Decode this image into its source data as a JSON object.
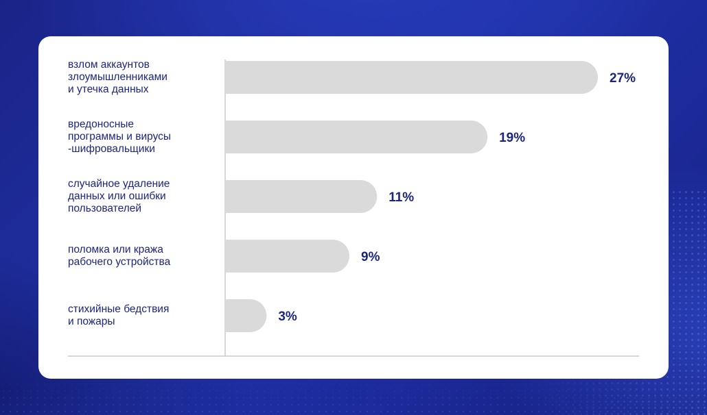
{
  "chart_data": {
    "type": "bar",
    "orientation": "horizontal",
    "categories": [
      "взлом аккаунтов злоумышленниками и утечка данных",
      "вредоносные программы и вирусы -шифровальщики",
      "случайное удаление данных или ошибки пользователей",
      "поломка или кража рабочего устройства",
      "стихийные бедствия и пожары"
    ],
    "category_lines": [
      [
        "взлом аккаунтов",
        "злоумышленниками",
        "и утечка данных"
      ],
      [
        "вредоносные",
        "программы и вирусы",
        "-шифровальщики"
      ],
      [
        "случайное удаление",
        "данных или ошибки",
        "пользователей"
      ],
      [
        "поломка или кража",
        "рабочего устройства"
      ],
      [
        "стихийные бедствия",
        "и пожары"
      ]
    ],
    "values": [
      27,
      19,
      11,
      9,
      3
    ],
    "data_labels": [
      "27%",
      "19%",
      "11%",
      "9%",
      "3%"
    ],
    "unit": "%",
    "title": "",
    "xlabel": "",
    "ylabel": "",
    "xlim": [
      0,
      27
    ],
    "grid": false,
    "legend": "none",
    "colors": {
      "bar": "#dadada",
      "label_text": "#1b2580",
      "value_text": "#1b2580",
      "axis": "#c8c8c8",
      "card": "#ffffff",
      "background": "#1b2a94"
    }
  }
}
